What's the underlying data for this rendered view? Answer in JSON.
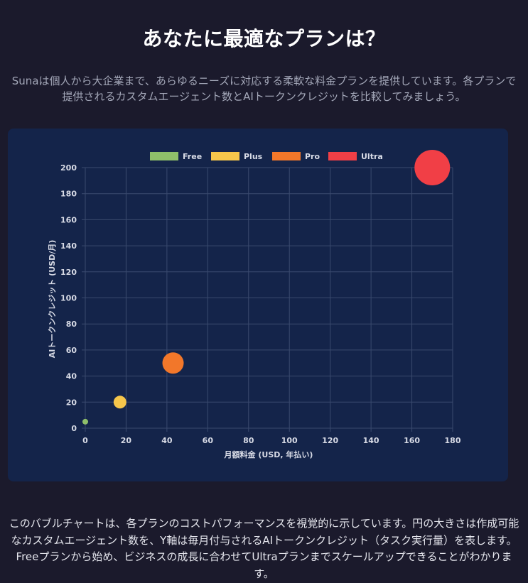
{
  "header": {
    "title": "あなたに最適なプランは？",
    "intro": "Sunaは個人から大企業まで、あらゆるニーズに対応する柔軟な料金プランを提供しています。各プランで提供されるカスタムエージェント数とAIトークンクレジットを比較してみましょう。"
  },
  "chart_data": {
    "type": "scatter",
    "subtype": "bubble",
    "xlabel": "月額料金 (USD, 年払い)",
    "ylabel": "AIトークンクレジット (USD/月)",
    "xlim": [
      0,
      180
    ],
    "ylim": [
      0,
      200
    ],
    "x_ticks": [
      0,
      20,
      40,
      60,
      80,
      100,
      120,
      140,
      160,
      180
    ],
    "y_ticks": [
      0,
      20,
      40,
      60,
      80,
      100,
      120,
      140,
      160,
      180,
      200
    ],
    "grid": true,
    "legend_position": "top",
    "series": [
      {
        "name": "Free",
        "color": "#8fbf6a",
        "x": 0,
        "y": 5,
        "r": 4
      },
      {
        "name": "Plus",
        "color": "#f6c64b",
        "x": 17,
        "y": 20,
        "r": 9
      },
      {
        "name": "Pro",
        "color": "#f2772a",
        "x": 43,
        "y": 50,
        "r": 15
      },
      {
        "name": "Ultra",
        "color": "#f13f46",
        "x": 170,
        "y": 200,
        "r": 25
      }
    ]
  },
  "footer": {
    "caption": "このバブルチャートは、各プランのコストパフォーマンスを視覚的に示しています。円の大きさは作成可能なカスタムエージェント数を、Y軸は毎月付与されるAIトークンクレジット（タスク実行量）を表します。Freeプランから始め、ビジネスの成長に合わせてUltraプランまでスケールアップできることがわかります。"
  }
}
